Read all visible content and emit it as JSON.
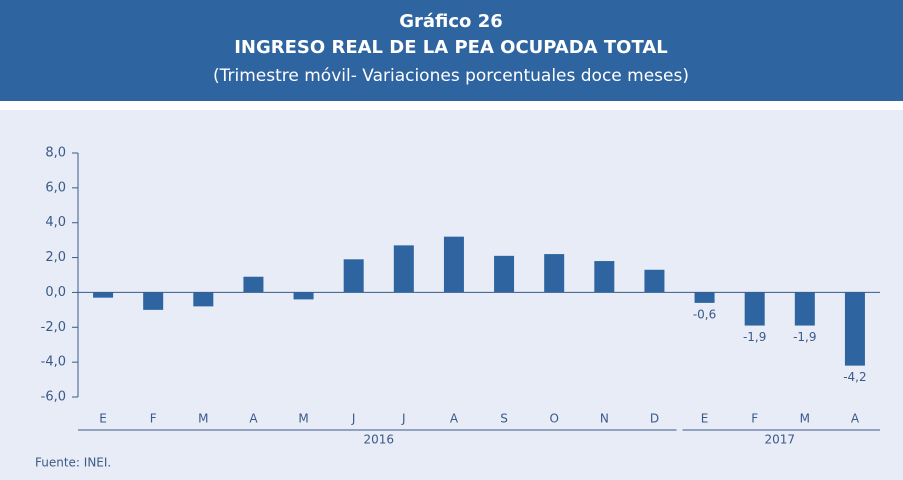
{
  "chart_data": {
    "type": "bar",
    "title": "Gráfico 26",
    "subtitle": "INGRESO REAL DE LA PEA OCUPADA TOTAL",
    "note": "(Trimestre móvil- Variaciones porcentuales doce meses)",
    "source": "Fuente: INEI.",
    "categories": [
      "E",
      "F",
      "M",
      "A",
      "M",
      "J",
      "J",
      "A",
      "S",
      "O",
      "N",
      "D",
      "E",
      "F",
      "M",
      "A"
    ],
    "values": [
      -0.3,
      -1.0,
      -0.8,
      0.9,
      -0.4,
      1.9,
      2.7,
      3.2,
      2.1,
      2.2,
      1.8,
      1.3,
      -0.6,
      -1.9,
      -1.9,
      -4.2
    ],
    "value_labels": [
      null,
      null,
      null,
      null,
      null,
      null,
      null,
      null,
      null,
      null,
      null,
      null,
      "-0,6",
      "-1,9",
      "-1,9",
      "-4,2"
    ],
    "groups": [
      {
        "label": "2016",
        "span": 12
      },
      {
        "label": "2017",
        "span": 4
      }
    ],
    "color": "#2e64a0",
    "ylim": [
      -6,
      8
    ],
    "yticks": [
      {
        "value": -6,
        "label": "-6,0"
      },
      {
        "value": -4,
        "label": "-4,0"
      },
      {
        "value": -2,
        "label": "-2,0"
      },
      {
        "value": 0,
        "label": "0,0"
      },
      {
        "value": 2,
        "label": "2,0"
      },
      {
        "value": 4,
        "label": "4,0"
      },
      {
        "value": 6,
        "label": "6,0"
      },
      {
        "value": 8,
        "label": "8,0"
      }
    ],
    "grid": false
  }
}
